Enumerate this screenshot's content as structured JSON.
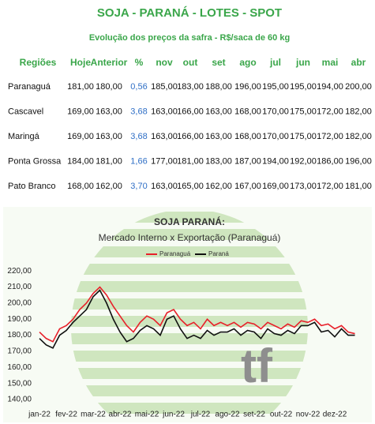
{
  "header": {
    "title": "SOJA - PARANÁ - LOTES - SPOT",
    "subtitle": "Evolução dos preços da safra - R$/saca de 60 kg"
  },
  "table": {
    "columns": [
      "Regiões",
      "Hoje",
      "Anterior",
      "%",
      "nov",
      "out",
      "set",
      "ago",
      "jul",
      "jun",
      "mai",
      "abr"
    ],
    "rows": [
      [
        "Paranaguá",
        "181,00",
        "180,00",
        "0,56",
        "185,00",
        "183,00",
        "188,00",
        "196,00",
        "195,00",
        "195,00",
        "194,00",
        "200,00"
      ],
      [
        "Cascavel",
        "169,00",
        "163,00",
        "3,68",
        "163,00",
        "166,00",
        "163,00",
        "168,00",
        "170,00",
        "175,00",
        "172,00",
        "182,00"
      ],
      [
        "Maringá",
        "169,00",
        "163,00",
        "3,68",
        "163,00",
        "166,00",
        "163,00",
        "168,00",
        "170,00",
        "175,00",
        "172,00",
        "182,00"
      ],
      [
        "Ponta Grossa",
        "184,00",
        "181,00",
        "1,66",
        "177,00",
        "181,00",
        "183,00",
        "187,00",
        "194,00",
        "192,00",
        "186,00",
        "196,00"
      ],
      [
        "Pato Branco",
        "168,00",
        "162,00",
        "3,70",
        "163,00",
        "165,00",
        "162,00",
        "167,00",
        "169,00",
        "173,00",
        "172,00",
        "181,00"
      ]
    ]
  },
  "watermark": "tf",
  "chart_data": {
    "type": "line",
    "title": "SOJA PARANÁ:",
    "subtitle": "Mercado Interno x Exportação (Paranaguá)",
    "categories": [
      "jan-22",
      null,
      null,
      null,
      "fev-22",
      null,
      null,
      null,
      "mar-22",
      null,
      null,
      null,
      "abr-22",
      null,
      null,
      null,
      "mai-22",
      null,
      null,
      null,
      "jun-22",
      null,
      null,
      null,
      "jul-22",
      null,
      null,
      null,
      "ago-22",
      null,
      null,
      null,
      "set-22",
      null,
      null,
      null,
      "out-22",
      null,
      null,
      null,
      "nov-22",
      null,
      null,
      null,
      "dez-22",
      null,
      null,
      null
    ],
    "series": [
      {
        "name": "Paranaguá",
        "color": "#e8202a",
        "values": [
          182,
          178,
          176,
          184,
          186,
          190,
          196,
          200,
          206,
          210,
          205,
          198,
          192,
          186,
          182,
          188,
          192,
          190,
          186,
          194,
          196,
          190,
          186,
          188,
          184,
          190,
          186,
          188,
          186,
          188,
          185,
          188,
          187,
          184,
          188,
          186,
          184,
          187,
          185,
          189,
          188,
          190,
          186,
          187,
          184,
          186,
          182,
          181
        ]
      },
      {
        "name": "Paraná",
        "color": "#111111",
        "values": [
          178,
          174,
          172,
          180,
          183,
          188,
          192,
          196,
          204,
          208,
          200,
          190,
          182,
          176,
          178,
          183,
          186,
          184,
          180,
          190,
          192,
          184,
          178,
          180,
          178,
          183,
          180,
          182,
          182,
          184,
          180,
          183,
          182,
          178,
          184,
          181,
          180,
          183,
          181,
          186,
          186,
          188,
          182,
          183,
          179,
          184,
          180,
          180
        ]
      }
    ],
    "ylim": [
      140,
      225
    ],
    "yticks": [
      {
        "value": 140,
        "label": "140,00"
      },
      {
        "value": 150,
        "label": "150,00"
      },
      {
        "value": 160,
        "label": "160,00"
      },
      {
        "value": 170,
        "label": "170,00"
      },
      {
        "value": 180,
        "label": "180,00"
      },
      {
        "value": 190,
        "label": "190,00"
      },
      {
        "value": 200,
        "label": "200,00"
      },
      {
        "value": 210,
        "label": "210,00"
      },
      {
        "value": 220,
        "label": "220,00"
      }
    ],
    "grid": false,
    "legend": "top"
  }
}
